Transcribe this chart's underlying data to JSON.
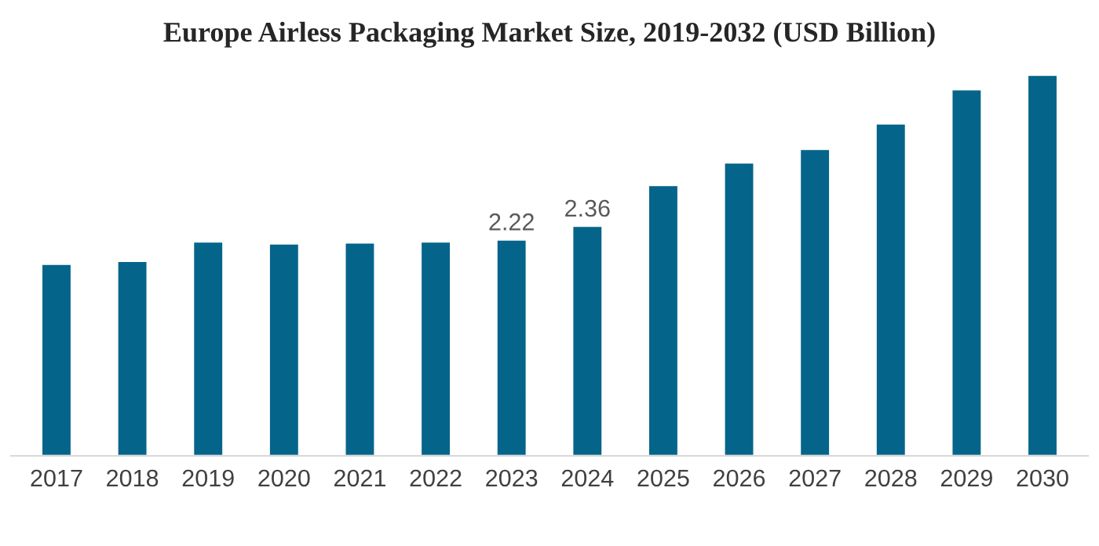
{
  "chart_data": {
    "type": "bar",
    "title": "Europe Airless Packaging Market Size, 2019-2032 (USD Billion)",
    "categories": [
      "2017",
      "2018",
      "2019",
      "2020",
      "2021",
      "2022",
      "2023",
      "2024",
      "2025",
      "2026",
      "2027",
      "2028",
      "2029",
      "2030"
    ],
    "values": [
      1.97,
      2.0,
      2.2,
      2.18,
      2.19,
      2.2,
      2.22,
      2.36,
      2.78,
      3.01,
      3.15,
      3.41,
      3.76,
      3.91
    ],
    "value_labels": [
      null,
      null,
      null,
      null,
      null,
      null,
      "2.22",
      "2.36",
      null,
      null,
      null,
      null,
      null,
      null
    ],
    "color": "#05648a",
    "grid": false,
    "legend": false
  }
}
